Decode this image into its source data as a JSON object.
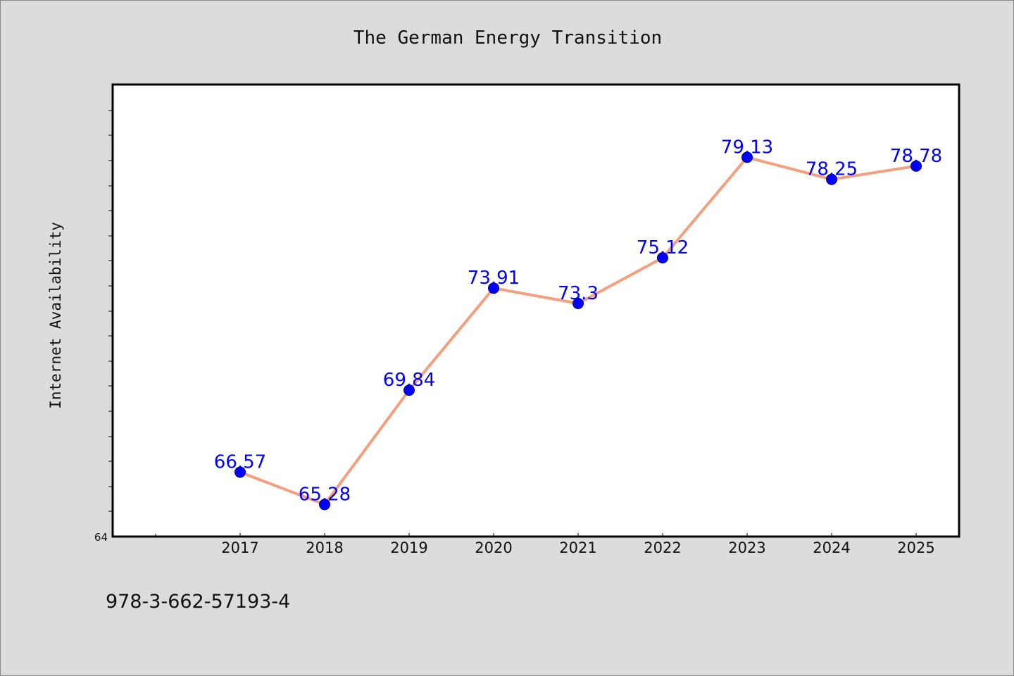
{
  "chart_data": {
    "type": "line",
    "title": "The German Energy Transition",
    "xlabel": "",
    "ylabel": "Internet Availability",
    "x": [
      "2017",
      "2018",
      "2019",
      "2020",
      "2021",
      "2022",
      "2023",
      "2024",
      "2025"
    ],
    "series": [
      {
        "values": [
          66.57,
          65.28,
          69.84,
          73.91,
          73.3,
          75.12,
          79.13,
          78.25,
          78.78
        ],
        "labels": [
          "66.57",
          "65.28",
          "69.84",
          "73.91",
          "73.3",
          "75.12",
          "79.13",
          "78.25",
          "78.78"
        ]
      }
    ],
    "ylim": [
      64,
      82
    ],
    "ytick_labels": [
      "64"
    ],
    "grid": false,
    "legend": "none",
    "colors": {
      "line": "#f4a07e",
      "marker": "#0000ff",
      "label": "#0000ff",
      "plot_background": "#ffffff",
      "page_background": "#dcdcdc"
    }
  },
  "footer": {
    "isbn": "978-3-662-57193-4"
  }
}
